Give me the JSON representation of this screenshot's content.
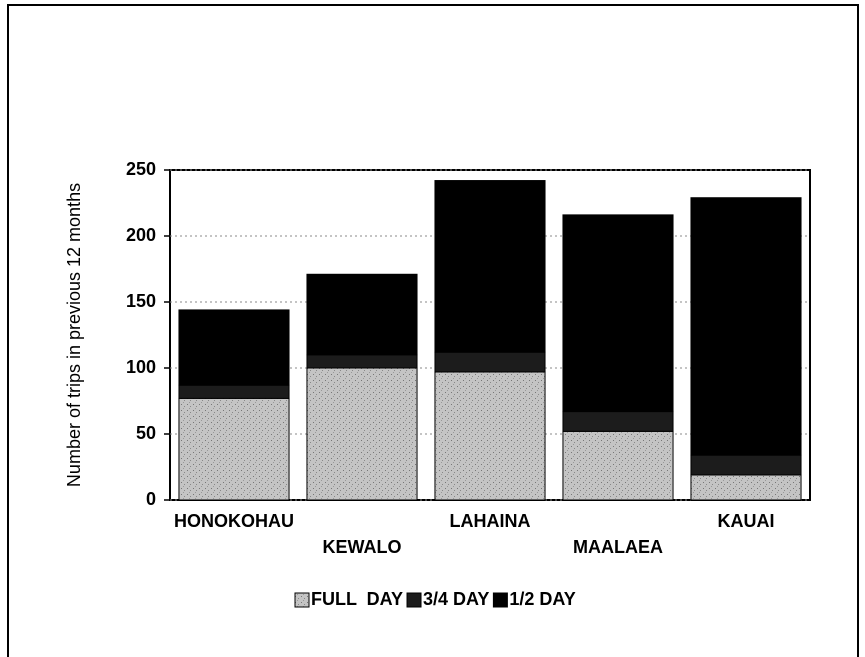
{
  "chart_data": {
    "type": "stacked_bar",
    "y_label": "Number of trips in previous 12 months",
    "categories": [
      "HONOKOHAU",
      "KEWALO",
      "LAHAINA",
      "MAALAEA",
      "KAUAI"
    ],
    "series": [
      {
        "name": "FULL  DAY",
        "color": "#c4c4c4",
        "values": [
          77,
          100,
          97,
          52,
          19
        ]
      },
      {
        "name": "3/4 DAY",
        "color": "#1c1c1c",
        "values": [
          10,
          10,
          15,
          15,
          15
        ]
      },
      {
        "name": "1/2 DAY",
        "color": "#000000",
        "values": [
          57,
          61,
          130,
          149,
          195
        ]
      }
    ],
    "ylim": [
      0,
      250
    ],
    "yticks": [
      0,
      50,
      100,
      150,
      200,
      250
    ],
    "grid": true,
    "legend": "bottom"
  }
}
